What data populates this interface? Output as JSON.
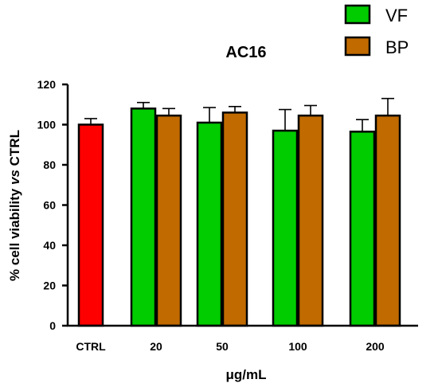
{
  "chart_data": {
    "type": "bar",
    "title": "AC16",
    "xlabel": "μg/mL",
    "ylabel": "% cell viability vs CTRL",
    "ylabel_parts": [
      "% cell viability ",
      "vs",
      " CTRL"
    ],
    "ylim": [
      0,
      120
    ],
    "yticks": [
      0,
      20,
      40,
      60,
      80,
      100,
      120
    ],
    "categories": [
      "CTRL",
      "20",
      "50",
      "100",
      "200"
    ],
    "control": {
      "name": "CTRL",
      "value": 100,
      "error": 3,
      "color": "#ff0000"
    },
    "series": [
      {
        "name": "VF",
        "color": "#00cc00",
        "values": [
          null,
          108,
          101,
          97,
          96.5
        ],
        "errors": [
          null,
          3,
          7.5,
          10.5,
          6
        ]
      },
      {
        "name": "BP",
        "color": "#c06a00",
        "values": [
          null,
          104.5,
          106,
          104.5,
          104.5
        ],
        "errors": [
          null,
          3.5,
          3,
          5,
          8.5
        ]
      }
    ],
    "legend": {
      "position": "top-right"
    },
    "grid": false
  }
}
